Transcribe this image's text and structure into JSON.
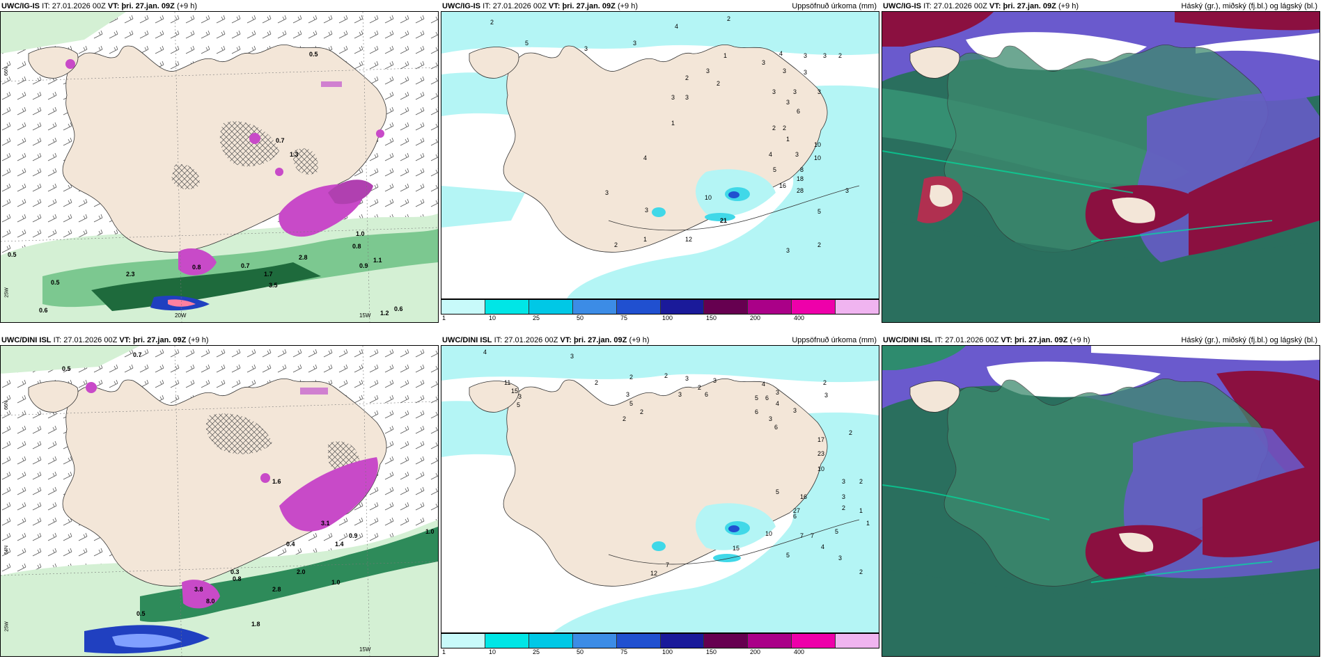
{
  "rows": [
    {
      "model": "UWC/IG-IS",
      "it_label": "IT:",
      "it_value": "27.01.2026 00Z",
      "vt_label": "VT:",
      "vt_value": "þri. 27.jan. 09Z",
      "lead": "(+9 h)"
    },
    {
      "model": "UWC/DINI ISL",
      "it_label": "IT:",
      "it_value": "27.01.2026 00Z",
      "vt_label": "VT:",
      "vt_value": "þri. 27.jan. 09Z",
      "lead": "(+9 h)"
    }
  ],
  "titles": {
    "precip": "Uppsöfnuð úrkoma (mm)",
    "clouds": "Háský (gr.), miðský (fj.bl.) og lágský (bl.)"
  },
  "axis": {
    "lat_66": "66N",
    "lat_64": "64N",
    "lon_20w": "20W",
    "lon_15w": "15W",
    "lon_25w": "25W"
  },
  "colorbar": {
    "ticks": [
      "1",
      "10",
      "25",
      "50",
      "75",
      "100",
      "150",
      "200",
      "400"
    ],
    "colors": [
      "#c8fafa",
      "#00e6e6",
      "#00c8e6",
      "#3c8ce6",
      "#2050d0",
      "#1a1a9a",
      "#660050",
      "#aa0088",
      "#ee00aa",
      "#f0b4f0"
    ]
  },
  "colors": {
    "land": "#f3e6d8",
    "sea": "#ffffff",
    "precip_light": "#b4f5f5",
    "precip_mid": "#40d8e8",
    "wind_green_light": "#d4f0d4",
    "wind_green_dark": "#1e6a3c",
    "magenta": "#c84ac8",
    "cloud_high": "#6a5acd",
    "cloud_mid": "#2e8b6e",
    "cloud_low": "#8b1040"
  },
  "labels_ig": {
    "wind": [
      "0.5",
      "0.5",
      "0.6",
      "0.7",
      "1.0",
      "0.8",
      "1.1",
      "0.9",
      "2.8",
      "3.5",
      "1.7",
      "2.3",
      "0.5",
      "0.6",
      "1.2",
      "0.7",
      "1.3",
      "0.8"
    ],
    "precip": [
      "2",
      "5",
      "3",
      "3",
      "4",
      "2",
      "4",
      "3",
      "3",
      "2",
      "1",
      "3",
      "2",
      "3",
      "3",
      "3",
      "3",
      "3",
      "3",
      "3",
      "3",
      "2",
      "3",
      "6",
      "2",
      "2",
      "1",
      "10",
      "10",
      "4",
      "3",
      "5",
      "8",
      "18",
      "28",
      "16",
      "5",
      "3",
      "4",
      "1",
      "3",
      "2",
      "21",
      "10",
      "12",
      "3",
      "2",
      "3",
      "1"
    ]
  },
  "labels_dini": {
    "wind": [
      "0.5",
      "0.7",
      "0.4",
      "0.3",
      "2.8",
      "1.8",
      "2.0",
      "1.4",
      "0.9",
      "3.1",
      "0.8",
      "1.0",
      "1.0",
      "0.5",
      "3.8",
      "8.0",
      "1.6"
    ],
    "precip": [
      "4",
      "3",
      "11",
      "15",
      "5",
      "3",
      "2",
      "2",
      "2",
      "3",
      "2",
      "3",
      "3",
      "5",
      "2",
      "2",
      "3",
      "6",
      "4",
      "3",
      "2",
      "3",
      "5",
      "6",
      "4",
      "6",
      "3",
      "3",
      "6",
      "23",
      "17",
      "10",
      "16",
      "27",
      "5",
      "3",
      "2",
      "1",
      "7",
      "7",
      "6",
      "10",
      "15",
      "5",
      "4",
      "12",
      "7",
      "3",
      "2",
      "1",
      "2",
      "5",
      "3",
      "2"
    ]
  }
}
